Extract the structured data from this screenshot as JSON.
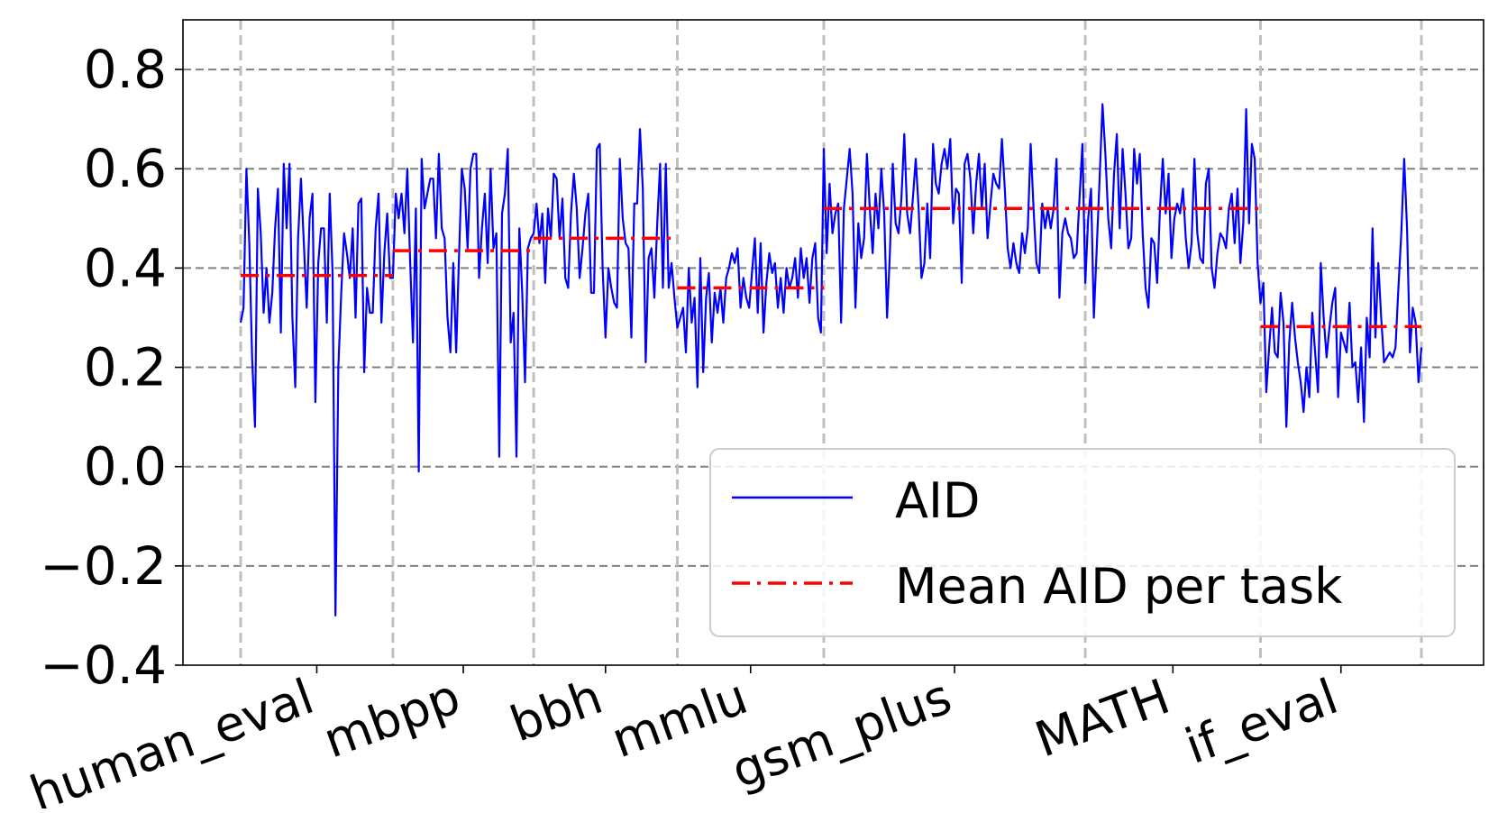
{
  "chart_data": {
    "type": "line",
    "title": "",
    "xlabel": "",
    "ylabel": "",
    "ylim": [
      -0.4,
      0.9
    ],
    "yticks": [
      -0.4,
      -0.2,
      0.0,
      0.2,
      0.4,
      0.6,
      0.8
    ],
    "ytick_labels": [
      "−0.4",
      "−0.2",
      "0.0",
      "0.2",
      "0.4",
      "0.6",
      "0.8"
    ],
    "grid": true,
    "legend": {
      "placement": "lower-right",
      "entries": [
        "AID",
        "Mean AID per task"
      ]
    },
    "colors": {
      "aid": "#0000ff",
      "mean": "#ff0000",
      "grid": "#808080",
      "boundary": "#bfbfbf"
    },
    "tasks": [
      {
        "name": "human_eval",
        "mean": 0.385,
        "values": [
          0.29,
          0.32,
          0.6,
          0.45,
          0.22,
          0.08,
          0.56,
          0.47,
          0.31,
          0.4,
          0.29,
          0.35,
          0.48,
          0.56,
          0.27,
          0.61,
          0.48,
          0.61,
          0.3,
          0.16,
          0.46,
          0.58,
          0.45,
          0.32,
          0.5,
          0.55,
          0.13,
          0.41,
          0.48,
          0.48,
          0.29,
          0.55,
          0.39,
          -0.3,
          0.2,
          0.35,
          0.47,
          0.43,
          0.38,
          0.48,
          0.3,
          0.53,
          0.54,
          0.19,
          0.36,
          0.31,
          0.31,
          0.48,
          0.55,
          0.29,
          0.43,
          0.51,
          0.38
        ]
      },
      {
        "name": "mbpp",
        "mean": 0.435,
        "values": [
          0.38,
          0.55,
          0.5,
          0.55,
          0.47,
          0.6,
          0.41,
          0.25,
          0.52,
          -0.01,
          0.62,
          0.52,
          0.55,
          0.58,
          0.58,
          0.46,
          0.63,
          0.48,
          0.46,
          0.3,
          0.23,
          0.41,
          0.23,
          0.42,
          0.6,
          0.56,
          0.44,
          0.6,
          0.63,
          0.63,
          0.38,
          0.48,
          0.55,
          0.41,
          0.6,
          0.44,
          0.47,
          0.02,
          0.51,
          0.55,
          0.64,
          0.25,
          0.31,
          0.02,
          0.48,
          0.35,
          0.17,
          0.44,
          0.46
        ]
      },
      {
        "name": "bbh",
        "mean": 0.46,
        "values": [
          0.47,
          0.53,
          0.45,
          0.51,
          0.37,
          0.52,
          0.46,
          0.59,
          0.58,
          0.46,
          0.54,
          0.38,
          0.36,
          0.51,
          0.59,
          0.52,
          0.38,
          0.44,
          0.51,
          0.55,
          0.35,
          0.35,
          0.64,
          0.65,
          0.4,
          0.26,
          0.4,
          0.36,
          0.33,
          0.32,
          0.62,
          0.5,
          0.45,
          0.44,
          0.26,
          0.53,
          0.53,
          0.68,
          0.56,
          0.21,
          0.42,
          0.44,
          0.34,
          0.49,
          0.61,
          0.36,
          0.61,
          0.36,
          0.41,
          0.34
        ]
      },
      {
        "name": "mmlu",
        "mean": 0.36,
        "values": [
          0.28,
          0.3,
          0.32,
          0.23,
          0.4,
          0.29,
          0.34,
          0.16,
          0.42,
          0.19,
          0.34,
          0.39,
          0.25,
          0.35,
          0.31,
          0.36,
          0.29,
          0.38,
          0.4,
          0.43,
          0.41,
          0.44,
          0.32,
          0.38,
          0.34,
          0.32,
          0.39,
          0.46,
          0.31,
          0.45,
          0.27,
          0.37,
          0.43,
          0.39,
          0.41,
          0.32,
          0.38,
          0.31,
          0.4,
          0.36,
          0.38,
          0.42,
          0.34,
          0.44,
          0.38,
          0.42,
          0.33,
          0.42,
          0.45,
          0.3,
          0.27
        ]
      },
      {
        "name": "gsm_plus",
        "mean": 0.52,
        "values": [
          0.64,
          0.43,
          0.57,
          0.47,
          0.51,
          0.53,
          0.29,
          0.52,
          0.58,
          0.64,
          0.55,
          0.32,
          0.49,
          0.42,
          0.46,
          0.63,
          0.52,
          0.43,
          0.55,
          0.48,
          0.6,
          0.51,
          0.3,
          0.43,
          0.61,
          0.49,
          0.47,
          0.54,
          0.67,
          0.51,
          0.47,
          0.54,
          0.62,
          0.52,
          0.38,
          0.41,
          0.53,
          0.42,
          0.65,
          0.57,
          0.55,
          0.61,
          0.64,
          0.6,
          0.66,
          0.49,
          0.56,
          0.55,
          0.37,
          0.61,
          0.63,
          0.58,
          0.47,
          0.57,
          0.63,
          0.52,
          0.61,
          0.46,
          0.53,
          0.59,
          0.57,
          0.56,
          0.66,
          0.56,
          0.44,
          0.4,
          0.45,
          0.41,
          0.39,
          0.47,
          0.43,
          0.48,
          0.65,
          0.52,
          0.41,
          0.39,
          0.53,
          0.48,
          0.52,
          0.48,
          0.52,
          0.62,
          0.34,
          0.47,
          0.5,
          0.47,
          0.46,
          0.42,
          0.43,
          0.54,
          0.65
        ]
      },
      {
        "name": "MATH",
        "mean": 0.52,
        "values": [
          0.37,
          0.5,
          0.56,
          0.3,
          0.44,
          0.58,
          0.73,
          0.63,
          0.5,
          0.44,
          0.59,
          0.67,
          0.48,
          0.64,
          0.55,
          0.44,
          0.46,
          0.64,
          0.57,
          0.63,
          0.47,
          0.36,
          0.32,
          0.46,
          0.45,
          0.37,
          0.52,
          0.62,
          0.51,
          0.59,
          0.42,
          0.5,
          0.53,
          0.51,
          0.56,
          0.46,
          0.4,
          0.45,
          0.62,
          0.47,
          0.42,
          0.41,
          0.57,
          0.6,
          0.4,
          0.36,
          0.43,
          0.47,
          0.46,
          0.44,
          0.52,
          0.55,
          0.45,
          0.56,
          0.41,
          0.49,
          0.72,
          0.49,
          0.65,
          0.62,
          0.41
        ]
      },
      {
        "name": "if_eval",
        "mean": 0.282,
        "values": [
          0.33,
          0.37,
          0.15,
          0.24,
          0.32,
          0.23,
          0.22,
          0.35,
          0.29,
          0.08,
          0.25,
          0.33,
          0.26,
          0.21,
          0.17,
          0.11,
          0.2,
          0.14,
          0.31,
          0.23,
          0.15,
          0.41,
          0.3,
          0.22,
          0.28,
          0.33,
          0.36,
          0.14,
          0.27,
          0.25,
          0.23,
          0.33,
          0.2,
          0.21,
          0.13,
          0.24,
          0.09,
          0.3,
          0.22,
          0.48,
          0.26,
          0.41,
          0.3,
          0.21,
          0.22,
          0.23,
          0.22,
          0.24,
          0.36,
          0.47,
          0.62,
          0.48,
          0.23,
          0.32,
          0.29,
          0.17,
          0.24
        ]
      }
    ]
  }
}
